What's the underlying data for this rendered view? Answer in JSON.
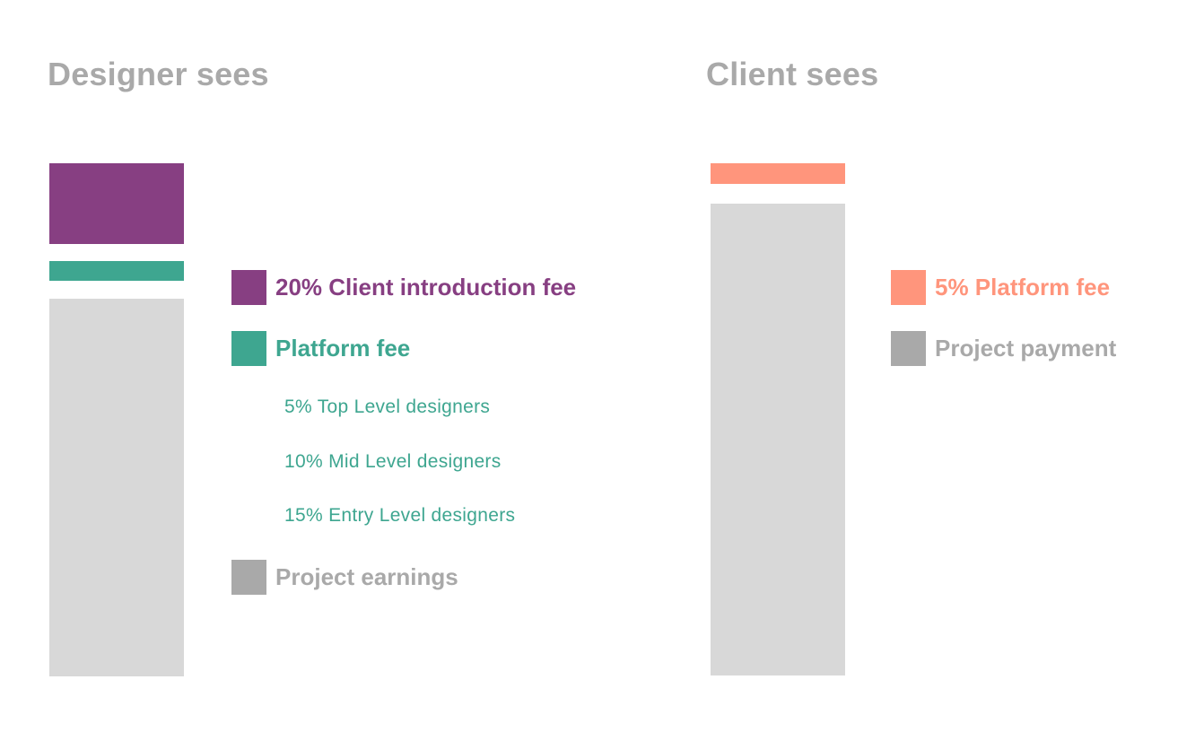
{
  "colors": {
    "purple": "#873f82",
    "teal": "#3ea690",
    "gray_bar": "#d8d8d8",
    "gray_swatch": "#a9a9a9",
    "salmon": "#ff957c",
    "title_gray": "#a9a9a9"
  },
  "designer": {
    "title": "Designer sees",
    "legend": {
      "client_intro_fee": "20% Client introduction fee",
      "platform_fee": "Platform fee",
      "platform_fee_tiers": [
        "5% Top Level designers",
        "10% Mid Level designers",
        "15% Entry Level designers"
      ],
      "project_earnings": "Project earnings"
    }
  },
  "client": {
    "title": "Client sees",
    "legend": {
      "platform_fee": "5% Platform fee",
      "project_payment": "Project payment"
    }
  }
}
